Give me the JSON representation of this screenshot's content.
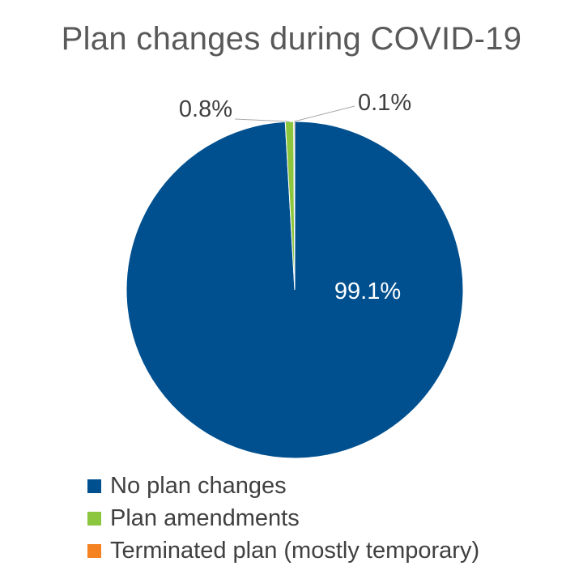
{
  "chart_data": {
    "type": "pie",
    "title": "Plan changes during COVID-19",
    "slices": [
      {
        "label": "No plan changes",
        "value": 99.1,
        "display": "99.1%",
        "color": "#00508F"
      },
      {
        "label": "Plan amendments",
        "value": 0.8,
        "display": "0.8%",
        "color": "#8CC63F"
      },
      {
        "label": "Terminated plan (mostly temporary)",
        "value": 0.1,
        "display": "0.1%",
        "color": "#F58220"
      }
    ],
    "legend_position": "bottom",
    "label_color_inside": "#FFFFFF",
    "label_color_outside": "#404040",
    "leader_line_color": "#A6A6A6"
  }
}
